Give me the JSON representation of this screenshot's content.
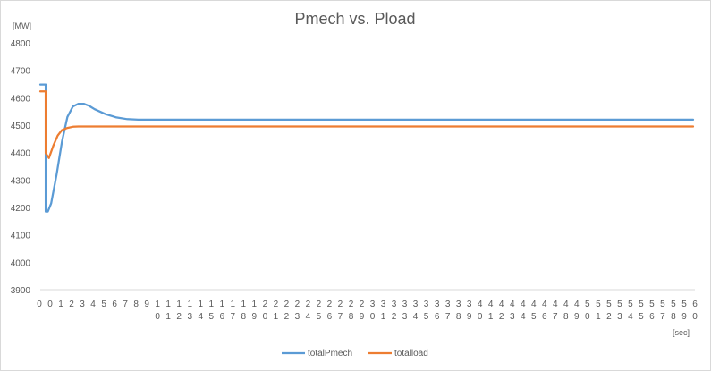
{
  "chart_data": {
    "type": "line",
    "title": "Pmech vs. Pload",
    "ylabel": "[MW]",
    "xlabel": "[sec]",
    "ylim": [
      3900,
      4800
    ],
    "xlim": [
      0,
      60
    ],
    "y_ticks": [
      "3900",
      "4000",
      "4100",
      "4200",
      "4300",
      "4400",
      "4500",
      "4600",
      "4700",
      "4800"
    ],
    "x_ticks": [
      "0",
      "0",
      "1",
      "2",
      "3",
      "4",
      "5",
      "6",
      "7",
      "8",
      "9",
      "10",
      "11",
      "12",
      "13",
      "14",
      "15",
      "16",
      "17",
      "18",
      "19",
      "20",
      "21",
      "22",
      "23",
      "24",
      "25",
      "26",
      "27",
      "28",
      "29",
      "30",
      "31",
      "32",
      "33",
      "34",
      "35",
      "36",
      "37",
      "38",
      "39",
      "40",
      "41",
      "42",
      "43",
      "44",
      "45",
      "46",
      "47",
      "48",
      "49",
      "50",
      "51",
      "52",
      "53",
      "54",
      "55",
      "56",
      "57",
      "58",
      "59",
      "60"
    ],
    "grid": false,
    "legend_position": "bottom",
    "series": [
      {
        "name": "totalPmech",
        "color": "#5b9bd5",
        "x": [
          0,
          0.5,
          0.5,
          0.7,
          1.0,
          1.5,
          2.0,
          2.5,
          3.0,
          3.5,
          4.0,
          4.5,
          5.0,
          6.0,
          7.0,
          8.0,
          9.0,
          10,
          20,
          30,
          40,
          50,
          60
        ],
        "y": [
          4648,
          4648,
          4185,
          4185,
          4215,
          4320,
          4440,
          4530,
          4568,
          4578,
          4578,
          4570,
          4558,
          4540,
          4528,
          4522,
          4520,
          4520,
          4520,
          4520,
          4520,
          4520,
          4520
        ]
      },
      {
        "name": "totalload",
        "color": "#ed7d31",
        "x": [
          0,
          0.5,
          0.5,
          0.8,
          1.2,
          1.6,
          2.0,
          2.5,
          3.0,
          3.5,
          4.0,
          10,
          20,
          30,
          40,
          50,
          60
        ],
        "y": [
          4623,
          4623,
          4398,
          4380,
          4425,
          4462,
          4482,
          4490,
          4494,
          4495,
          4495,
          4495,
          4495,
          4495,
          4495,
          4495,
          4495
        ]
      }
    ]
  }
}
